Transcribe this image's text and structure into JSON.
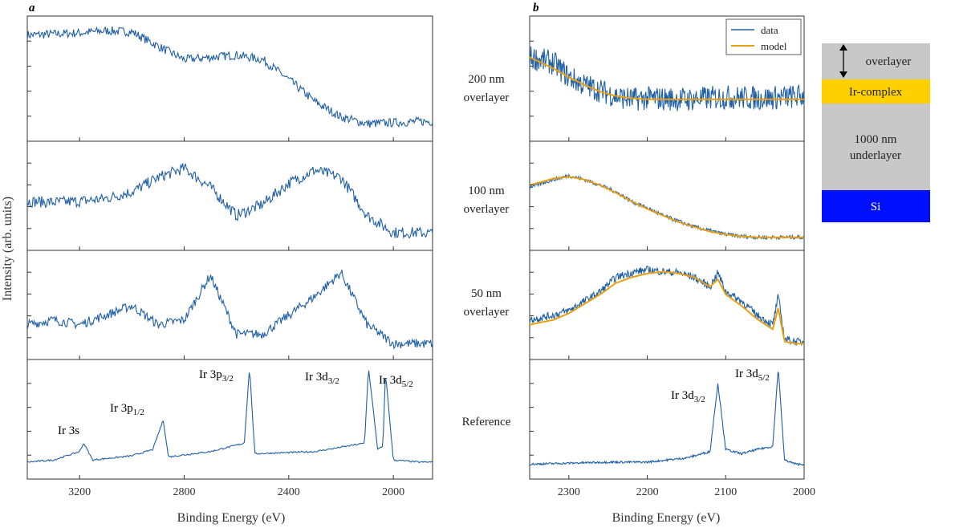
{
  "chart_data": [
    {
      "panel": "a",
      "type": "line",
      "xlabel": "Binding Energy (eV)",
      "ylabel": "Intensity (arb. units)",
      "xlim": [
        3400,
        1850
      ],
      "x_ticks": [
        3200,
        2800,
        2400,
        2000
      ],
      "y_ticks": "unlabeled",
      "color": "#1f5fa6",
      "subplots": [
        {
          "label": "200 nm overlayer",
          "x": [
            3400,
            3300,
            3200,
            3100,
            3000,
            2900,
            2800,
            2700,
            2600,
            2500,
            2400,
            2300,
            2200,
            2100,
            2000,
            1900,
            1850
          ],
          "y": [
            0.9,
            0.91,
            0.92,
            0.94,
            0.93,
            0.8,
            0.68,
            0.7,
            0.72,
            0.68,
            0.5,
            0.3,
            0.16,
            0.1,
            0.11,
            0.12,
            0.12
          ]
        },
        {
          "label": "100 nm overlayer",
          "x": [
            3400,
            3300,
            3200,
            3100,
            3000,
            2900,
            2800,
            2700,
            2600,
            2500,
            2400,
            2300,
            2200,
            2100,
            2000,
            1900,
            1850
          ],
          "y": [
            0.45,
            0.44,
            0.45,
            0.48,
            0.55,
            0.7,
            0.8,
            0.6,
            0.3,
            0.42,
            0.64,
            0.78,
            0.7,
            0.3,
            0.12,
            0.12,
            0.11
          ]
        },
        {
          "label": "50 nm overlayer",
          "x": [
            3400,
            3300,
            3200,
            3100,
            3000,
            2900,
            2800,
            2700,
            2600,
            2500,
            2400,
            2300,
            2200,
            2100,
            2000,
            1900,
            1850
          ],
          "y": [
            0.3,
            0.35,
            0.3,
            0.4,
            0.5,
            0.3,
            0.35,
            0.82,
            0.2,
            0.2,
            0.4,
            0.6,
            0.85,
            0.3,
            0.1,
            0.1,
            0.1
          ]
        },
        {
          "label": "Reference",
          "x": [
            3400,
            3300,
            3200,
            3184,
            3150,
            3000,
            2920,
            2880,
            2860,
            2700,
            2570,
            2550,
            2530,
            2300,
            2110,
            2095,
            2060,
            2040,
            2030,
            2000,
            1900,
            1850
          ],
          "y": [
            0.1,
            0.12,
            0.2,
            0.28,
            0.12,
            0.16,
            0.22,
            0.5,
            0.15,
            0.2,
            0.28,
            1.0,
            0.18,
            0.2,
            0.28,
            1.0,
            0.22,
            0.25,
            0.95,
            0.12,
            0.1,
            0.1
          ]
        }
      ]
    },
    {
      "panel": "b",
      "type": "line",
      "xlabel": "Binding Energy (eV)",
      "xlim": [
        2350,
        2000
      ],
      "x_ticks": [
        2300,
        2200,
        2100,
        2000
      ],
      "series": [
        {
          "name": "data",
          "color": "#1f5fa6"
        },
        {
          "name": "model",
          "color": "#e8a010"
        }
      ],
      "legend": "top-right",
      "subplots": [
        {
          "label": "200 nm overlayer",
          "x": [
            2350,
            2320,
            2300,
            2280,
            2260,
            2240,
            2220,
            2200,
            2150,
            2100,
            2050,
            2000
          ],
          "data": [
            0.7,
            0.65,
            0.52,
            0.45,
            0.4,
            0.35,
            0.32,
            0.33,
            0.32,
            0.34,
            0.33,
            0.35
          ],
          "model": [
            0.7,
            0.6,
            0.52,
            0.45,
            0.39,
            0.35,
            0.33,
            0.32,
            0.32,
            0.32,
            0.32,
            0.32
          ]
        },
        {
          "label": "100 nm overlayer",
          "x": [
            2350,
            2320,
            2300,
            2280,
            2260,
            2240,
            2220,
            2200,
            2180,
            2160,
            2140,
            2120,
            2100,
            2080,
            2060,
            2040,
            2020,
            2000
          ],
          "data": [
            0.6,
            0.68,
            0.72,
            0.68,
            0.62,
            0.55,
            0.45,
            0.38,
            0.3,
            0.24,
            0.18,
            0.14,
            0.1,
            0.08,
            0.07,
            0.07,
            0.07,
            0.07
          ],
          "model": [
            0.62,
            0.69,
            0.71,
            0.68,
            0.62,
            0.54,
            0.45,
            0.37,
            0.3,
            0.23,
            0.18,
            0.13,
            0.1,
            0.08,
            0.07,
            0.07,
            0.07,
            0.07
          ]
        },
        {
          "label": "50 nm overlayer",
          "x": [
            2350,
            2320,
            2300,
            2280,
            2260,
            2240,
            2220,
            2200,
            2180,
            2160,
            2140,
            2120,
            2110,
            2100,
            2080,
            2060,
            2040,
            2033,
            2025,
            2010,
            2000
          ],
          "data": [
            0.35,
            0.4,
            0.45,
            0.55,
            0.65,
            0.8,
            0.85,
            0.88,
            0.86,
            0.85,
            0.8,
            0.7,
            0.85,
            0.65,
            0.55,
            0.4,
            0.3,
            0.6,
            0.15,
            0.12,
            0.12
          ],
          "model": [
            0.3,
            0.35,
            0.42,
            0.52,
            0.62,
            0.74,
            0.8,
            0.84,
            0.86,
            0.84,
            0.8,
            0.7,
            0.78,
            0.62,
            0.5,
            0.36,
            0.25,
            0.48,
            0.12,
            0.1,
            0.1
          ]
        },
        {
          "label": "Reference",
          "x": [
            2350,
            2300,
            2250,
            2200,
            2150,
            2120,
            2110,
            2100,
            2080,
            2060,
            2040,
            2033,
            2025,
            2010,
            2000
          ],
          "data": [
            0.08,
            0.09,
            0.1,
            0.1,
            0.14,
            0.2,
            0.85,
            0.22,
            0.18,
            0.22,
            0.25,
            1.0,
            0.12,
            0.08,
            0.08
          ]
        }
      ]
    }
  ],
  "figure": {
    "panel_a_letter": "a",
    "panel_b_letter": "b",
    "row_labels": [
      [
        "200 nm",
        "overlayer"
      ],
      [
        "100 nm",
        "overlayer"
      ],
      [
        "50 nm",
        "overlayer"
      ],
      [
        "Reference"
      ]
    ],
    "a_peaks": [
      {
        "base": "Ir 3s",
        "sub": ""
      },
      {
        "base": "Ir 3p",
        "sub": "1/2"
      },
      {
        "base": "Ir 3p",
        "sub": "3/2"
      },
      {
        "base": "Ir 3d",
        "sub": "3/2"
      },
      {
        "base": "Ir 3d",
        "sub": "5/2"
      }
    ],
    "b_peaks": [
      {
        "base": "Ir 3d",
        "sub": "3/2"
      },
      {
        "base": "Ir 3d",
        "sub": "5/2"
      }
    ],
    "layer_stack": {
      "layers": [
        {
          "label": "overlayer",
          "color": "#c8c8c8"
        },
        {
          "label": "Ir-complex",
          "color": "#ffd000"
        },
        {
          "label_lines": [
            "1000 nm",
            "underlayer"
          ],
          "color": "#c8c8c8"
        },
        {
          "label": "Si",
          "color": "#0010ff"
        }
      ]
    }
  }
}
